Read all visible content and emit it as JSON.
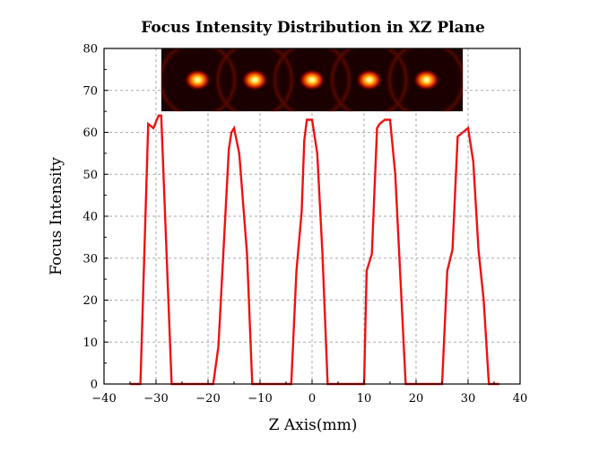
{
  "chart_data": {
    "type": "line",
    "title": "Focus Intensity Distribution in XZ Plane",
    "xlabel": "Z Axis(mm)",
    "ylabel": "Focus Intensity",
    "xlim": [
      -40,
      40
    ],
    "ylim": [
      0,
      80
    ],
    "xticks": [
      -40,
      -30,
      -20,
      -10,
      0,
      10,
      20,
      30,
      40
    ],
    "yticks": [
      0,
      10,
      20,
      30,
      40,
      50,
      60,
      70,
      80
    ],
    "grid": true,
    "line_color": "#ee1111",
    "series": [
      {
        "x": [
          -35,
          -33,
          -31.5,
          -30.5,
          -29.5,
          -29,
          -27,
          -19,
          -18,
          -16,
          -15.5,
          -15,
          -14,
          -12.5,
          -11.5,
          -4,
          -3,
          -2,
          -1.5,
          -1,
          -0.5,
          0,
          1,
          2,
          3,
          10,
          10.5,
          11.5,
          12.5,
          13,
          14,
          15,
          16,
          18,
          25,
          26,
          27,
          28,
          29,
          30,
          31,
          32,
          33,
          34,
          36
        ],
        "y": [
          0,
          0,
          62,
          61,
          64,
          64,
          0,
          0,
          9,
          56,
          60,
          61,
          55,
          31,
          0,
          0,
          27,
          41,
          58,
          63,
          63,
          63,
          55,
          31,
          0,
          0,
          27,
          31,
          61,
          62,
          63,
          63,
          50,
          0,
          0,
          27,
          32,
          59,
          60,
          61,
          53,
          32,
          20,
          0,
          0
        ]
      }
    ],
    "inset": {
      "type": "heatmap",
      "x_range": [
        -29,
        29
      ],
      "y_range": [
        65,
        80
      ],
      "hot_spots_x": [
        -22,
        -11,
        0,
        11,
        22
      ]
    }
  }
}
